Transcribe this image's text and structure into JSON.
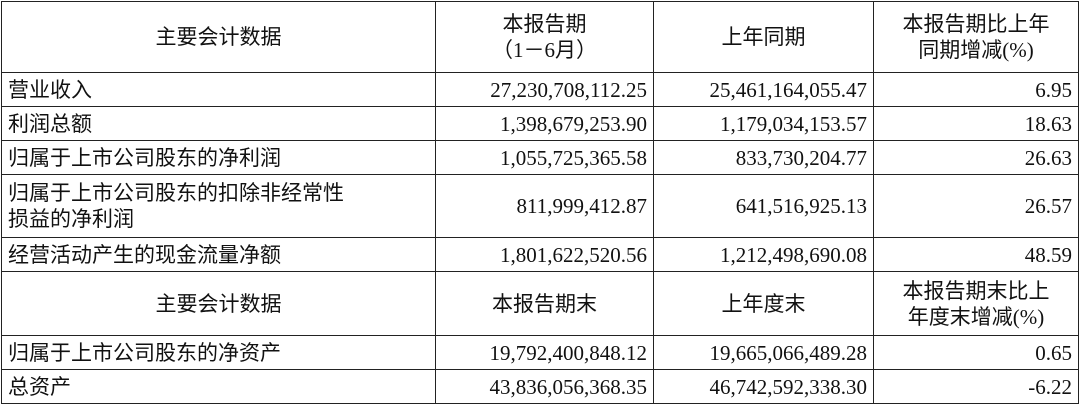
{
  "header1": {
    "col0": "主要会计数据",
    "col1_line1": "本报告期",
    "col1_line2": "（1－6月）",
    "col2": "上年同期",
    "col3_line1": "本报告期比上年",
    "col3_line2": "同期增减(%)"
  },
  "rows1": [
    {
      "label": "营业收入",
      "current": "27,230,708,112.25",
      "prior": "25,461,164,055.47",
      "change": "6.95"
    },
    {
      "label": "利润总额",
      "current": "1,398,679,253.90",
      "prior": "1,179,034,153.57",
      "change": "18.63"
    },
    {
      "label": "归属于上市公司股东的净利润",
      "current": "1,055,725,365.58",
      "prior": "833,730,204.77",
      "change": "26.63"
    },
    {
      "label_line1": "归属于上市公司股东的扣除非经常性",
      "label_line2": "损益的净利润",
      "current": "811,999,412.87",
      "prior": "641,516,925.13",
      "change": "26.57"
    },
    {
      "label": "经营活动产生的现金流量净额",
      "current": "1,801,622,520.56",
      "prior": "1,212,498,690.08",
      "change": "48.59"
    }
  ],
  "header2": {
    "col0": "主要会计数据",
    "col1": "本报告期末",
    "col2": "上年度末",
    "col3_line1": "本报告期末比上",
    "col3_line2": "年度末增减(%)"
  },
  "rows2": [
    {
      "label": "归属于上市公司股东的净资产",
      "current": "19,792,400,848.12",
      "prior": "19,665,066,489.28",
      "change": "0.65"
    },
    {
      "label": "总资产",
      "current": "43,836,056,368.35",
      "prior": "46,742,592,338.30",
      "change": "-6.22"
    }
  ]
}
